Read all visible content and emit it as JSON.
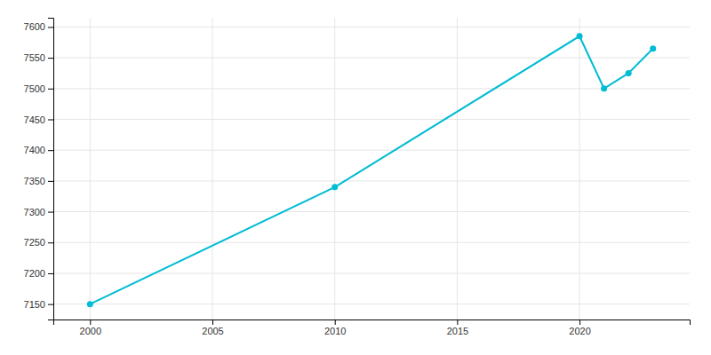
{
  "chart_data": {
    "type": "line",
    "x": [
      2000,
      2010,
      2020,
      2021,
      2022,
      2023
    ],
    "values": [
      7150,
      7340,
      7585,
      7500,
      7525,
      7565
    ],
    "color": "#00BCD4",
    "marker": "circle",
    "xlim": [
      1998.5,
      2024.5
    ],
    "ylim": [
      7125,
      7615
    ],
    "xticks": [
      2000,
      2005,
      2010,
      2015,
      2020
    ],
    "yticks": [
      7150,
      7200,
      7250,
      7300,
      7350,
      7400,
      7450,
      7500,
      7550,
      7600
    ],
    "grid": true
  }
}
